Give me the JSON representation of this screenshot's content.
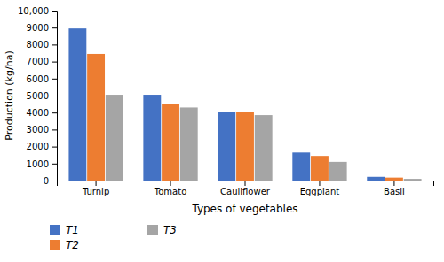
{
  "chart_data": {
    "type": "bar",
    "xlabel": "Types of vegetables",
    "ylabel": "Production (kg/ha)",
    "categories": [
      "Turnip",
      "Tomato",
      "Cauliflower",
      "Eggplant",
      "Basil"
    ],
    "series": [
      {
        "name": "T1",
        "color": "#4472C4",
        "values": [
          8950,
          5050,
          4050,
          1650,
          220
        ]
      },
      {
        "name": "T2",
        "color": "#ED7D31",
        "values": [
          7450,
          4500,
          4050,
          1450,
          175
        ]
      },
      {
        "name": "T3",
        "color": "#A5A5A5",
        "values": [
          5050,
          4300,
          3850,
          1100,
          100
        ]
      }
    ],
    "ylim": [
      0,
      10000
    ],
    "yticks": [
      0,
      1000,
      2000,
      3000,
      4000,
      5000,
      6000,
      7000,
      8000,
      9000,
      {
        "value": 10000,
        "label": "10,000"
      }
    ],
    "grid": false,
    "legend": "bottom"
  }
}
